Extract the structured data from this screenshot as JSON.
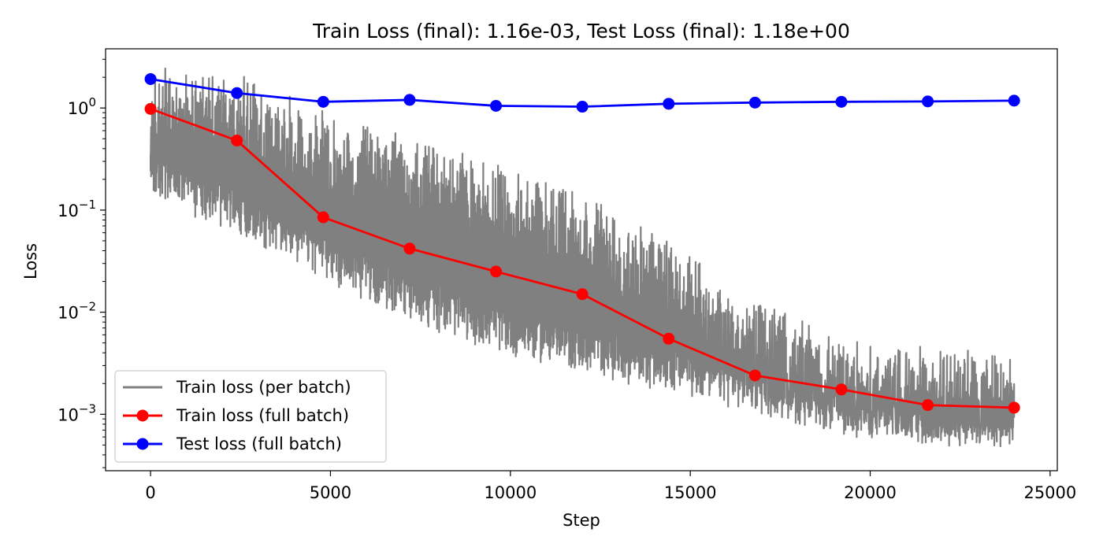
{
  "chart_data": {
    "type": "line",
    "title": "Train Loss (final): 1.16e-03, Test Loss (final): 1.18e+00",
    "xlabel": "Step",
    "ylabel": "Loss",
    "xlim": [
      -1250,
      25200
    ],
    "ylim": [
      0.00028,
      3.8
    ],
    "yscale": "log",
    "grid": false,
    "legend_position": "lower-left",
    "x_ticks": [
      {
        "value": 0,
        "label": "0"
      },
      {
        "value": 5000,
        "label": "5000"
      },
      {
        "value": 10000,
        "label": "10000"
      },
      {
        "value": 15000,
        "label": "15000"
      },
      {
        "value": 20000,
        "label": "20000"
      },
      {
        "value": 25000,
        "label": "25000"
      }
    ],
    "y_ticks": [
      {
        "value": 1,
        "base": "10",
        "exponent": "0"
      },
      {
        "value": 0.1,
        "base": "10",
        "exponent": "−1"
      },
      {
        "value": 0.01,
        "base": "10",
        "exponent": "−2"
      },
      {
        "value": 0.001,
        "base": "10",
        "exponent": "−3"
      }
    ],
    "series": [
      {
        "name": "Train loss (per batch)",
        "color": "#808080",
        "marker": "none",
        "style": "noisy_band",
        "x": [
          0,
          2400,
          4800,
          7200,
          9600,
          12000,
          14400,
          16800,
          19200,
          21600,
          24000
        ],
        "upper": [
          2.6,
          2.2,
          1.0,
          0.55,
          0.3,
          0.15,
          0.05,
          0.014,
          0.006,
          0.0045,
          0.0042
        ],
        "lower": [
          0.12,
          0.06,
          0.02,
          0.008,
          0.004,
          0.0025,
          0.0016,
          0.001,
          0.0006,
          0.00048,
          0.00046
        ]
      },
      {
        "name": "Train loss (full batch)",
        "color": "#ff0000",
        "marker": "circle",
        "x": [
          0,
          2400,
          4800,
          7200,
          9600,
          12000,
          14400,
          16800,
          19200,
          21600,
          24000
        ],
        "y": [
          0.98,
          0.48,
          0.085,
          0.042,
          0.025,
          0.015,
          0.0055,
          0.0024,
          0.00175,
          0.00123,
          0.00116
        ]
      },
      {
        "name": "Test loss (full batch)",
        "color": "#0000ff",
        "marker": "circle",
        "x": [
          0,
          2400,
          4800,
          7200,
          9600,
          12000,
          14400,
          16800,
          19200,
          21600,
          24000
        ],
        "y": [
          1.92,
          1.4,
          1.15,
          1.2,
          1.05,
          1.03,
          1.1,
          1.13,
          1.15,
          1.16,
          1.18
        ]
      }
    ]
  }
}
